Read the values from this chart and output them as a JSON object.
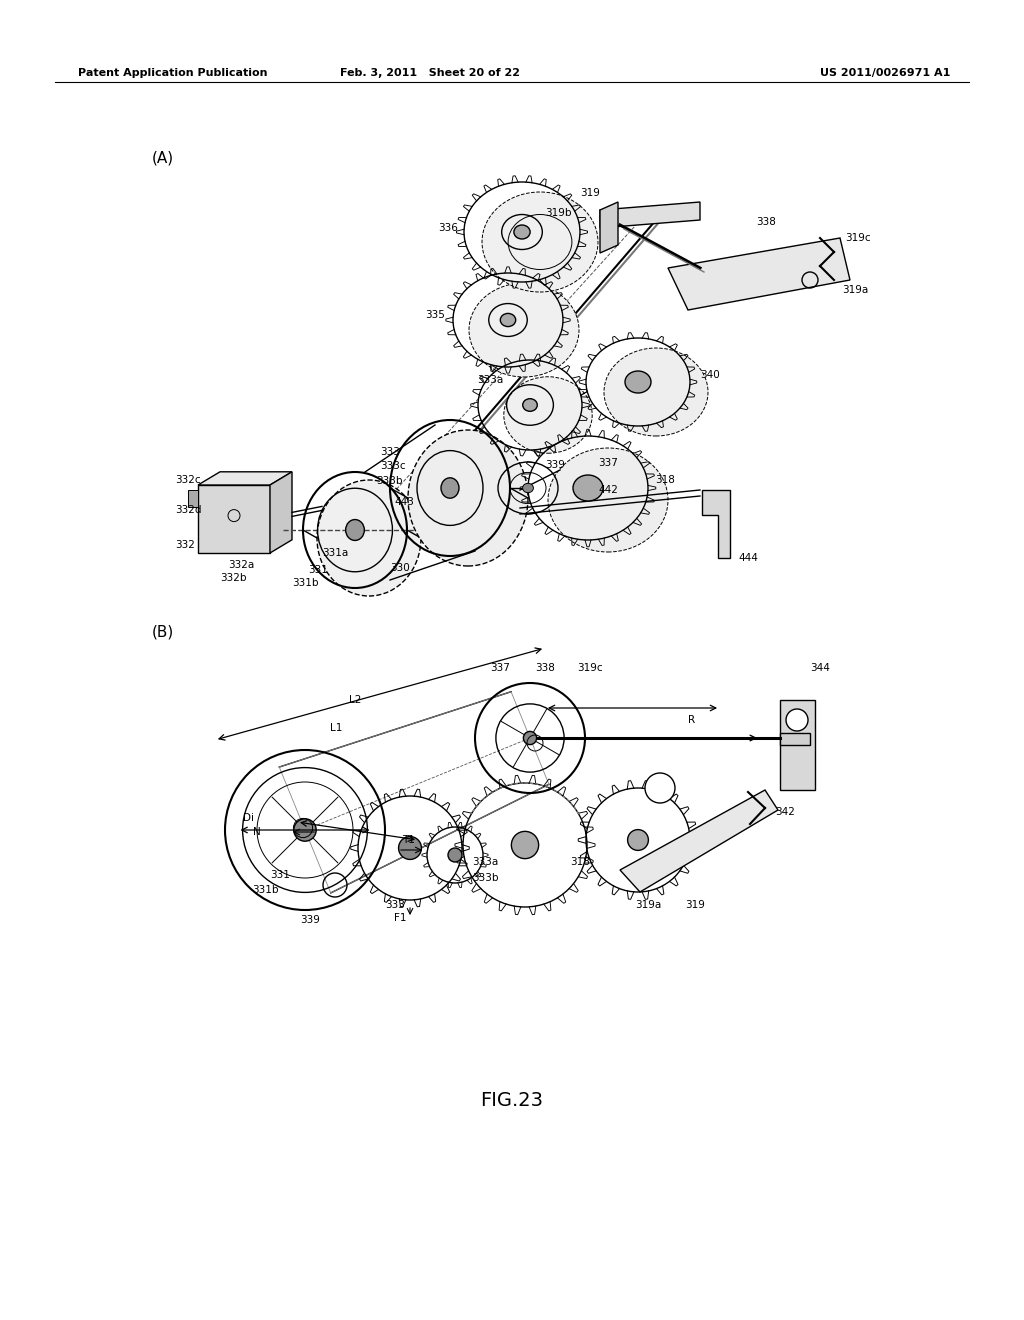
{
  "header_left": "Patent Application Publication",
  "header_center": "Feb. 3, 2011   Sheet 20 of 22",
  "header_right": "US 2011/0026971 A1",
  "figure_label": "FIG.23",
  "bg": "#ffffff",
  "lc": "#000000"
}
